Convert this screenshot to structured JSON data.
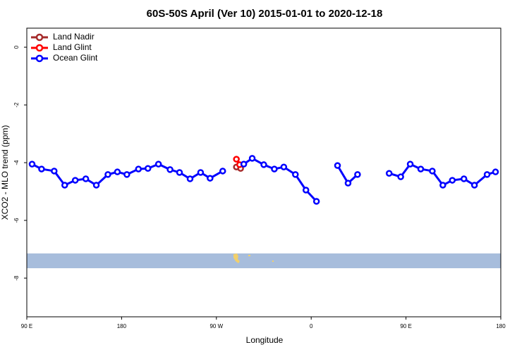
{
  "chart_data": {
    "type": "line",
    "title": "60S-50S April (Ver 10)   2015-01-01 to 2020-12-18",
    "x_label": "Longitude",
    "y_label": "XCO2 - MLO trend (ppm)",
    "xlim": [
      90,
      540
    ],
    "ylim": [
      -9.34,
      0.66
    ],
    "xticks": [
      {
        "value": 90,
        "label": "90 E"
      },
      180,
      {
        "value": 270,
        "label": "90 W"
      },
      {
        "value": 360,
        "label": "0"
      },
      {
        "value": 450,
        "label": "90 E"
      },
      {
        "value": 540,
        "label": "180"
      }
    ],
    "yticks": [
      0,
      -2,
      -4,
      -6,
      -8
    ],
    "legend_position": "top-left",
    "series": [
      {
        "name": "Land Nadir",
        "color": "#a52a2a",
        "x": [
          289,
          293
        ],
        "values": [
          -4.15,
          -4.2
        ]
      },
      {
        "name": "Land Glint",
        "color": "#ff0000",
        "x": [
          289,
          292
        ],
        "values": [
          -3.88,
          -4.07
        ]
      },
      {
        "name": "Ocean Glint",
        "color": "#0000ff",
        "x": [
          95,
          104,
          116,
          126,
          136,
          146,
          156,
          167,
          176,
          185,
          196,
          205,
          215,
          226,
          235,
          245,
          255,
          264,
          276,
          null,
          296,
          304,
          315,
          325,
          334,
          345,
          355,
          365,
          null,
          385,
          395,
          404,
          null,
          434,
          445,
          454,
          464,
          475,
          485,
          494,
          505,
          515,
          527,
          535
        ],
        "values": [
          -4.05,
          -4.22,
          -4.29,
          -4.78,
          -4.61,
          -4.56,
          -4.78,
          -4.41,
          -4.32,
          -4.41,
          -4.22,
          -4.2,
          -4.05,
          -4.24,
          -4.34,
          -4.56,
          -4.34,
          -4.54,
          -4.29,
          null,
          -4.05,
          -3.85,
          -4.07,
          -4.22,
          -4.15,
          -4.41,
          -4.95,
          -5.34,
          null,
          -4.1,
          -4.71,
          -4.41,
          null,
          -4.37,
          -4.49,
          -4.05,
          -4.22,
          -4.29,
          -4.78,
          -4.61,
          -4.56,
          -4.78,
          -4.41,
          -4.32
        ]
      }
    ]
  }
}
